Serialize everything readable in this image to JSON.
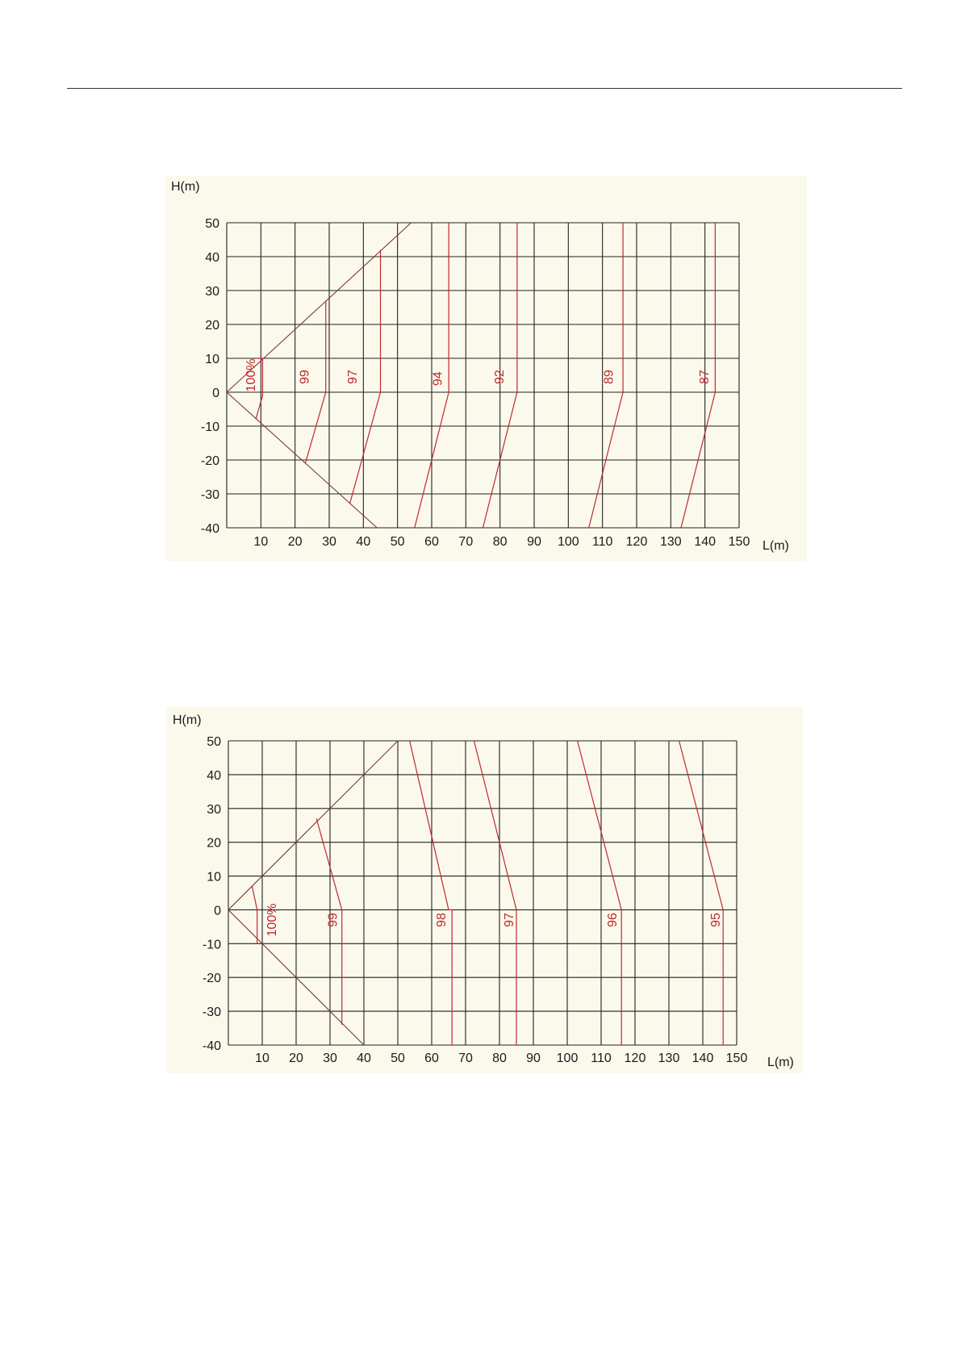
{
  "page": {
    "colors": {
      "grid": "#222222",
      "boundary": "#7a3a3a",
      "curve": "#c0282d",
      "panel": "#fbf9ec"
    }
  },
  "chart_data": [
    {
      "type": "line",
      "xlabel": "L(m)",
      "ylabel": "H(m)",
      "xlim": [
        0,
        150
      ],
      "ylim": [
        -40,
        50
      ],
      "x_ticks": [
        "10",
        "20",
        "30",
        "40",
        "50",
        "60",
        "70",
        "80",
        "90",
        "100",
        "110",
        "120",
        "130",
        "140",
        "150"
      ],
      "y_ticks": [
        "50",
        "40",
        "30",
        "20",
        "10",
        "0",
        "-10",
        "-20",
        "-30",
        "-40"
      ],
      "grid": true,
      "boundary": [
        {
          "name": "",
          "x": [
            0,
            54
          ],
          "y": [
            0,
            50
          ]
        },
        {
          "name": "",
          "x": [
            0,
            44
          ],
          "y": [
            0,
            -40
          ]
        }
      ],
      "series": [
        {
          "name": "100%",
          "label": "100%",
          "x": [
            8.5,
            10.5,
            10.5,
            8.5
          ],
          "y": [
            -8,
            -1,
            10,
            10
          ]
        },
        {
          "name": "99",
          "label": "99",
          "x": [
            23,
            29,
            29
          ],
          "y": [
            -21,
            0,
            27
          ]
        },
        {
          "name": "97",
          "label": "97",
          "x": [
            36,
            45,
            45
          ],
          "y": [
            -33,
            0,
            42
          ]
        },
        {
          "name": "94",
          "label": "94",
          "x": [
            55,
            65,
            65
          ],
          "y": [
            -40,
            0,
            50
          ]
        },
        {
          "name": "92",
          "label": "92",
          "x": [
            75,
            85,
            85
          ],
          "y": [
            -40,
            0,
            50
          ]
        },
        {
          "name": "89",
          "label": "89",
          "x": [
            106,
            116,
            116
          ],
          "y": [
            -40,
            0,
            50
          ]
        },
        {
          "name": "87",
          "label": "87",
          "x": [
            133,
            143,
            143
          ],
          "y": [
            -40,
            0,
            50
          ]
        }
      ],
      "curve_label_pos": [
        {
          "label": "100%",
          "x": 8.3,
          "y": 5
        },
        {
          "label": "99",
          "x": 24,
          "y": 4.5
        },
        {
          "label": "97",
          "x": 38,
          "y": 4.5
        },
        {
          "label": "94",
          "x": 63,
          "y": 4
        },
        {
          "label": "92",
          "x": 81,
          "y": 4.5
        },
        {
          "label": "89",
          "x": 113,
          "y": 4.5
        },
        {
          "label": "87",
          "x": 141,
          "y": 4.5
        }
      ]
    },
    {
      "type": "line",
      "xlabel": "L(m)",
      "ylabel": "H(m)",
      "xlim": [
        0,
        150
      ],
      "ylim": [
        -40,
        50
      ],
      "x_ticks": [
        "10",
        "20",
        "30",
        "40",
        "50",
        "60",
        "70",
        "80",
        "90",
        "100",
        "110",
        "120",
        "130",
        "140",
        "150"
      ],
      "y_ticks": [
        "50",
        "40",
        "30",
        "20",
        "10",
        "0",
        "-10",
        "-20",
        "-30",
        "-40"
      ],
      "grid": true,
      "boundary": [
        {
          "name": "",
          "x": [
            0,
            50
          ],
          "y": [
            0,
            50
          ]
        },
        {
          "name": "",
          "x": [
            0,
            40
          ],
          "y": [
            0,
            -40
          ]
        }
      ],
      "series": [
        {
          "name": "100%",
          "label": "100%",
          "x": [
            7,
            8.5,
            8.5
          ],
          "y": [
            7,
            0,
            -10
          ]
        },
        {
          "name": "99",
          "label": "99",
          "x": [
            26,
            33.5,
            33.5
          ],
          "y": [
            27,
            0,
            -34
          ]
        },
        {
          "name": "98",
          "label": "98",
          "x": [
            53.5,
            65,
            66,
            66
          ],
          "y": [
            50,
            0,
            0,
            -40
          ]
        },
        {
          "name": "97",
          "label": "97",
          "x": [
            72.5,
            85,
            85
          ],
          "y": [
            50,
            0,
            -40
          ]
        },
        {
          "name": "96",
          "label": "96",
          "x": [
            103,
            116,
            116
          ],
          "y": [
            50,
            0,
            -40
          ]
        },
        {
          "name": "95",
          "label": "95",
          "x": [
            133,
            146,
            146
          ],
          "y": [
            50,
            0,
            -40
          ]
        }
      ],
      "curve_label_pos": [
        {
          "label": "100%",
          "x": 14,
          "y": -3
        },
        {
          "label": "99",
          "x": 32,
          "y": -3
        },
        {
          "label": "98",
          "x": 64,
          "y": -3
        },
        {
          "label": "97",
          "x": 84,
          "y": -3
        },
        {
          "label": "96",
          "x": 114.5,
          "y": -3
        },
        {
          "label": "95",
          "x": 145,
          "y": -3
        }
      ]
    }
  ]
}
